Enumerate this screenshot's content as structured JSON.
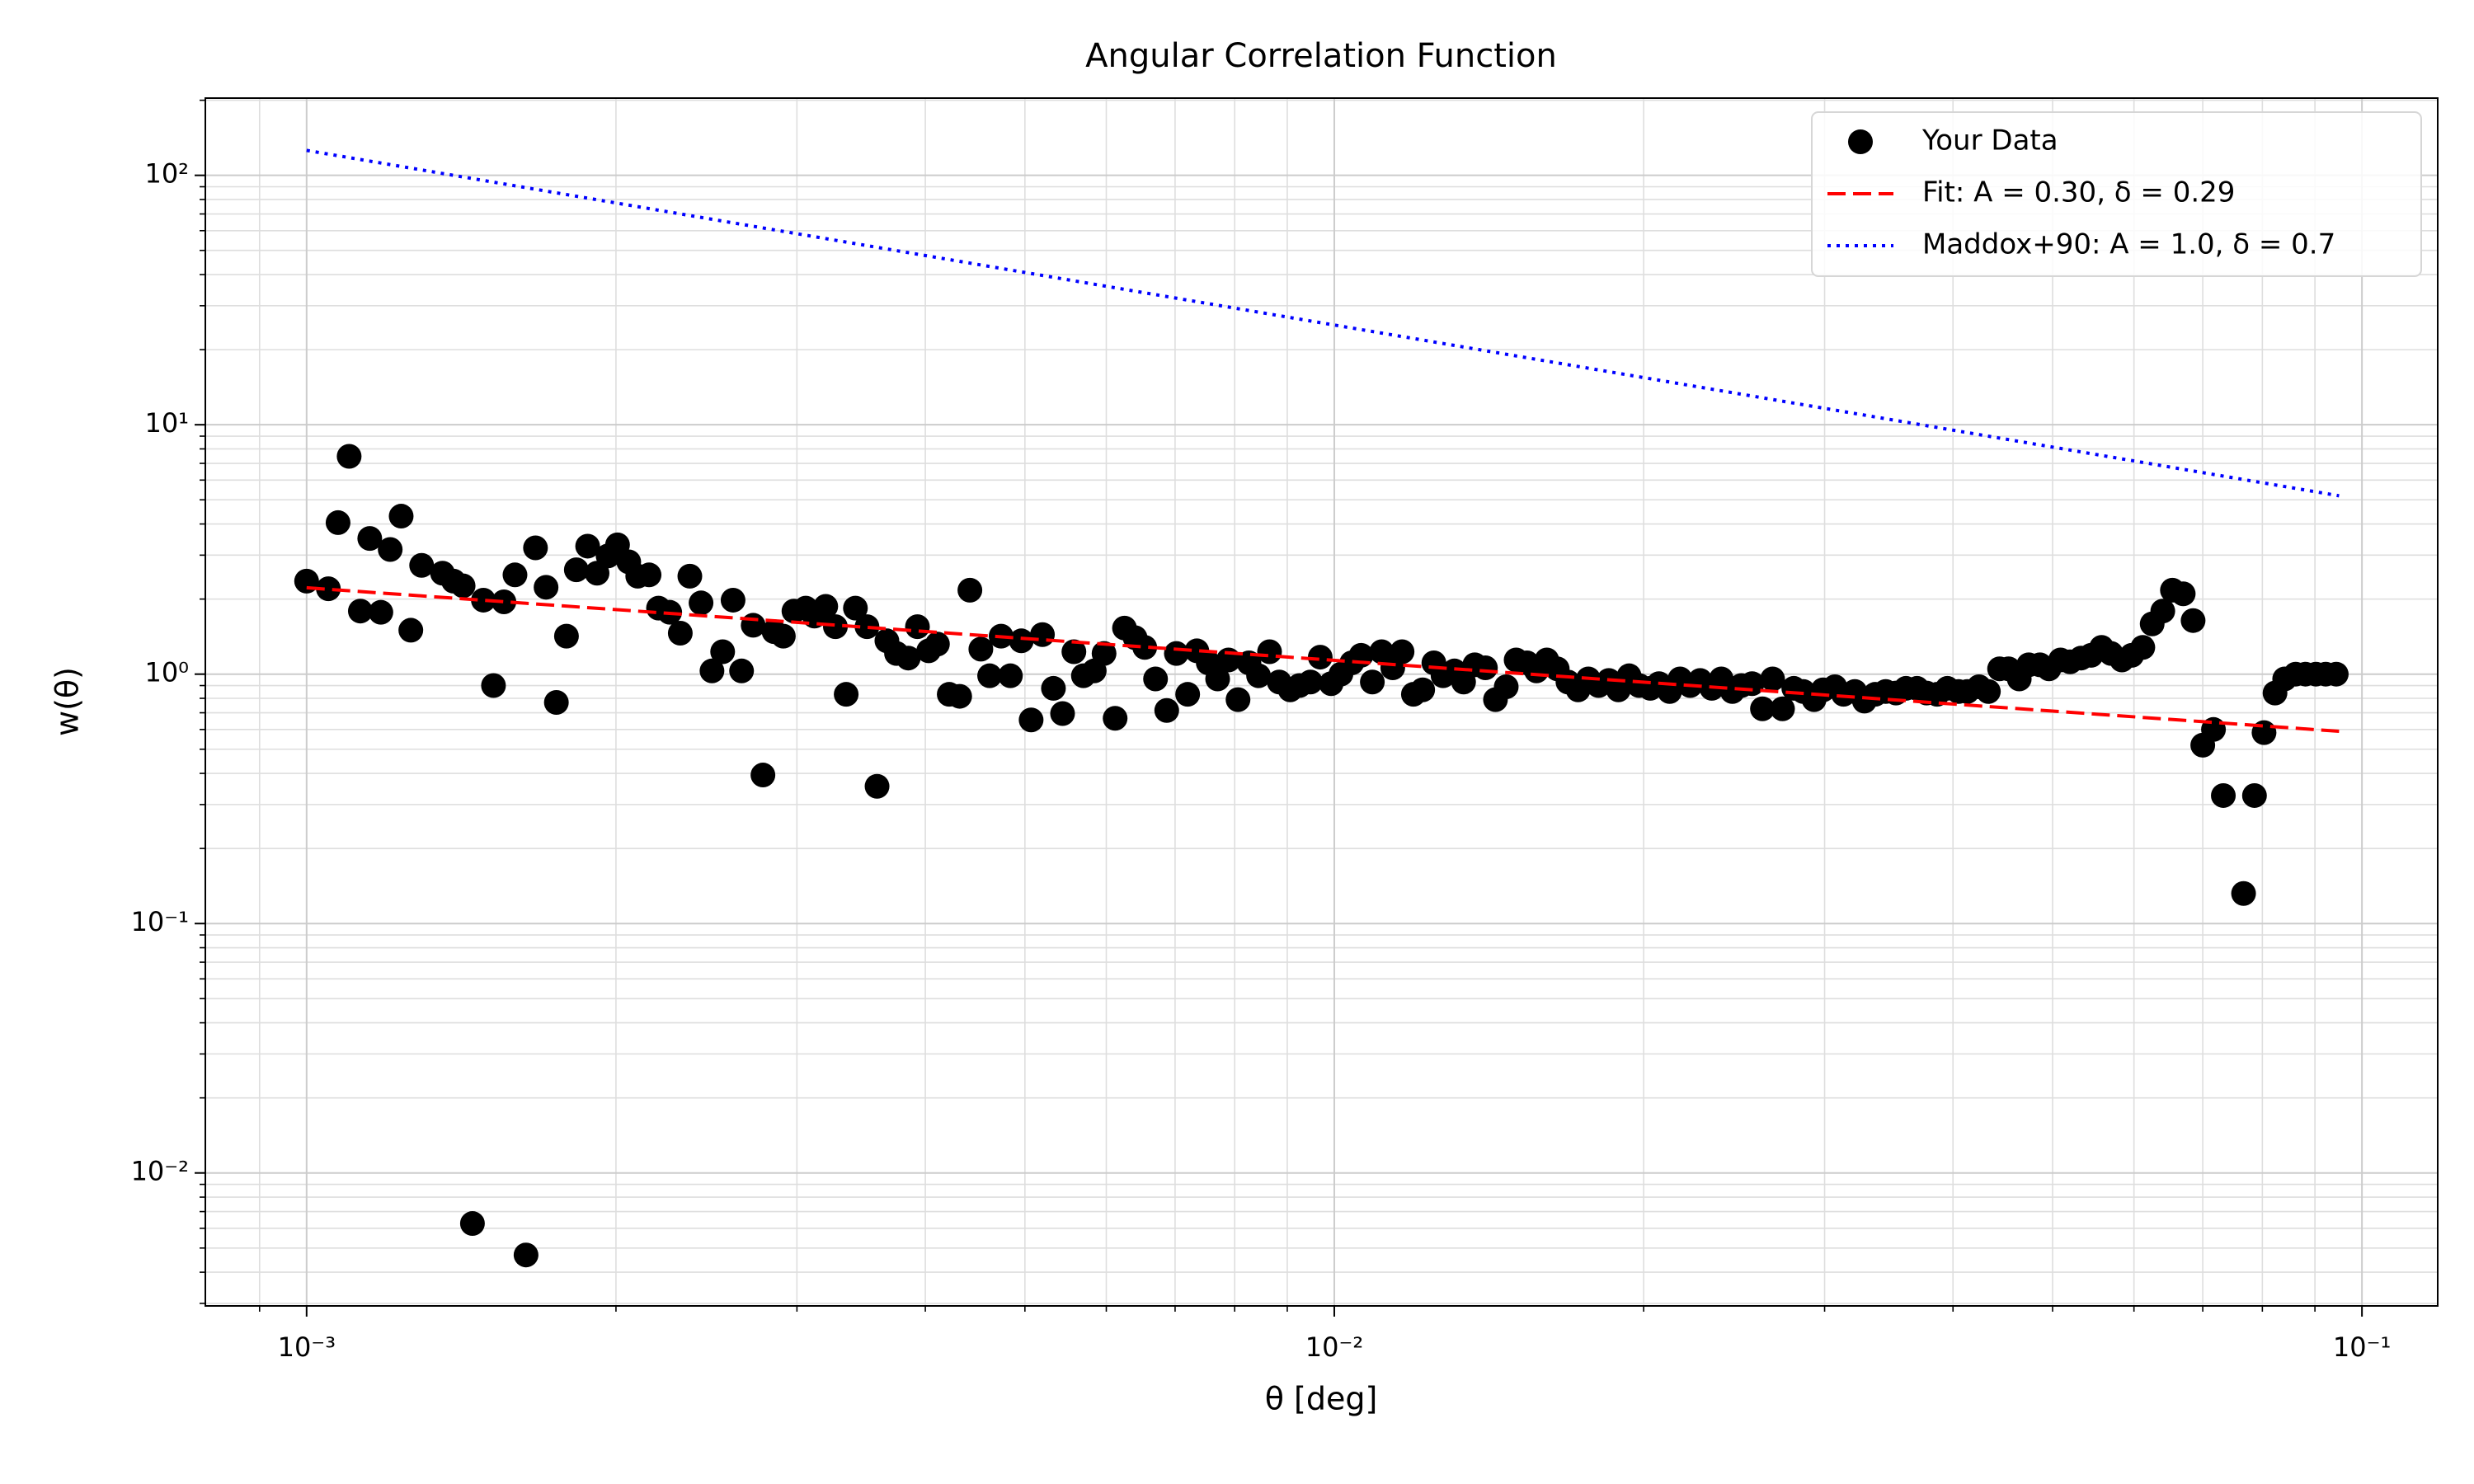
{
  "chart_data": {
    "type": "scatter",
    "title": "Angular Correlation Function",
    "x_label": "θ [deg]",
    "y_label": "w(θ)",
    "xscale": "log",
    "yscale": "log",
    "grid": true,
    "minor_grid": true,
    "legend": "upper right",
    "xlim": [
      0.000797,
      0.1185
    ],
    "ylim": [
      0.00293,
      204
    ],
    "xticks": [
      {
        "value": 0.001,
        "label": "10⁻³"
      },
      {
        "value": 0.01,
        "label": "10⁻²"
      },
      {
        "value": 0.1,
        "label": "10⁻¹"
      }
    ],
    "yticks": [
      {
        "value": 0.01,
        "label": "10⁻²"
      },
      {
        "value": 0.1,
        "label": "10⁻¹"
      },
      {
        "value": 1,
        "label": "10⁰"
      },
      {
        "value": 10,
        "label": "10¹"
      },
      {
        "value": 100,
        "label": "10²"
      }
    ],
    "xminorticks": [
      0.0009,
      0.002,
      0.003,
      0.004,
      0.005,
      0.006,
      0.007,
      0.008,
      0.009,
      0.02,
      0.03,
      0.04,
      0.05,
      0.06,
      0.07,
      0.08,
      0.09
    ],
    "yminorticks": [
      0.003,
      0.004,
      0.005,
      0.006,
      0.007,
      0.008,
      0.009,
      0.02,
      0.03,
      0.04,
      0.05,
      0.06,
      0.07,
      0.08,
      0.09,
      0.2,
      0.3,
      0.4,
      0.5,
      0.6,
      0.7,
      0.8,
      0.9,
      2,
      3,
      4,
      5,
      6,
      7,
      8,
      9,
      20,
      30,
      40,
      50,
      60,
      70,
      80,
      90,
      200
    ],
    "series": [
      {
        "name": "Your Data",
        "type": "scatter",
        "color": "#000000",
        "x": [
          0.001,
          0.00105,
          0.001073,
          0.0011,
          0.001128,
          0.001152,
          0.001181,
          0.001206,
          0.001236,
          0.001263,
          0.001294,
          0.001356,
          0.00139,
          0.00142,
          0.00145,
          0.001486,
          0.00152,
          0.001556,
          0.001595,
          0.001635,
          0.00167,
          0.00171,
          0.00175,
          0.00179,
          0.00183,
          0.001877,
          0.001917,
          0.001965,
          0.002007,
          0.002058,
          0.0021,
          0.002154,
          0.0022,
          0.002256,
          0.00231,
          0.00236,
          0.00242,
          0.00248,
          0.00254,
          0.0026,
          0.00265,
          0.00272,
          0.00278,
          0.00285,
          0.00291,
          0.00298,
          0.00306,
          0.00312,
          0.0032,
          0.00327,
          0.00335,
          0.00342,
          0.00351,
          0.00359,
          0.00367,
          0.00375,
          0.00385,
          0.00393,
          0.00403,
          0.00411,
          0.00422,
          0.00432,
          0.00442,
          0.00453,
          0.00462,
          0.00474,
          0.00484,
          0.00496,
          0.00507,
          0.0052,
          0.00533,
          0.00544,
          0.00558,
          0.0057,
          0.00584,
          0.00597,
          0.00612,
          0.00625,
          0.0064,
          0.00654,
          0.0067,
          0.00687,
          0.00702,
          0.0072,
          0.00735,
          0.00754,
          0.0077,
          0.00789,
          0.00806,
          0.00826,
          0.00844,
          0.00865,
          0.00884,
          0.00906,
          0.00925,
          0.00948,
          0.00969,
          0.00993,
          0.01015,
          0.0104,
          0.01062,
          0.01089,
          0.01112,
          0.0114,
          0.01164,
          0.01194,
          0.01219,
          0.0125,
          0.01276,
          0.01309,
          0.01336,
          0.0137,
          0.01403,
          0.01435,
          0.0147,
          0.01503,
          0.0154,
          0.01573,
          0.0161,
          0.01648,
          0.01688,
          0.01727,
          0.01767,
          0.01808,
          0.0185,
          0.0189,
          0.01936,
          0.0198,
          0.0203,
          0.0207,
          0.0212,
          0.0217,
          0.0222,
          0.0227,
          0.0233,
          0.0238,
          0.0244,
          0.0249,
          0.0255,
          0.0261,
          0.0267,
          0.0273,
          0.028,
          0.0286,
          0.0293,
          0.0299,
          0.0307,
          0.0313,
          0.0321,
          0.0328,
          0.0336,
          0.0344,
          0.0352,
          0.036,
          0.0369,
          0.0377,
          0.0386,
          0.0395,
          0.0405,
          0.0413,
          0.0424,
          0.0433,
          0.0444,
          0.0453,
          0.0464,
          0.0474,
          0.0486,
          0.0496,
          0.0509,
          0.052,
          0.0533,
          0.0545,
          0.0558,
          0.057,
          0.0584,
          0.0597,
          0.0612,
          0.0625,
          0.064,
          0.0654,
          0.067,
          0.0685,
          0.07,
          0.0717,
          0.0733,
          0.0767,
          0.0786,
          0.0803,
          0.0823,
          0.0841,
          0.0862,
          0.0881,
          0.0902,
          0.0922,
          0.0944
        ],
        "values": [
          2.36,
          2.2,
          4.05,
          7.47,
          1.79,
          3.5,
          1.77,
          3.16,
          4.3,
          1.5,
          2.73,
          2.54,
          2.36,
          2.26,
          0.00627,
          1.98,
          0.9,
          1.95,
          2.5,
          0.00469,
          3.21,
          2.23,
          0.77,
          1.42,
          2.62,
          3.26,
          2.54,
          2.98,
          3.3,
          2.82,
          2.47,
          2.5,
          1.84,
          1.77,
          1.46,
          2.47,
          1.93,
          1.03,
          1.23,
          1.98,
          1.03,
          1.57,
          0.394,
          1.48,
          1.42,
          1.79,
          1.84,
          1.71,
          1.87,
          1.55,
          0.83,
          1.84,
          1.55,
          0.355,
          1.36,
          1.21,
          1.16,
          1.55,
          1.24,
          1.32,
          0.83,
          0.815,
          2.17,
          1.26,
          0.985,
          1.42,
          0.985,
          1.36,
          0.655,
          1.44,
          0.877,
          0.695,
          1.23,
          0.985,
          1.03,
          1.21,
          0.665,
          1.53,
          1.4,
          1.28,
          0.957,
          0.715,
          1.21,
          0.83,
          1.24,
          1.11,
          0.957,
          1.14,
          0.79,
          1.11,
          0.985,
          1.23,
          0.93,
          0.865,
          0.9,
          0.93,
          1.17,
          0.916,
          1.0,
          1.11,
          1.19,
          0.93,
          1.23,
          1.06,
          1.23,
          0.83,
          0.865,
          1.11,
          0.985,
          1.03,
          0.93,
          1.09,
          1.06,
          0.79,
          0.89,
          1.14,
          1.11,
          1.03,
          1.14,
          1.05,
          0.93,
          0.865,
          0.957,
          0.9,
          0.943,
          0.865,
          0.985,
          0.9,
          0.877,
          0.916,
          0.852,
          0.957,
          0.9,
          0.943,
          0.877,
          0.957,
          0.852,
          0.9,
          0.916,
          0.726,
          0.957,
          0.726,
          0.877,
          0.852,
          0.79,
          0.865,
          0.89,
          0.83,
          0.852,
          0.78,
          0.83,
          0.852,
          0.84,
          0.877,
          0.877,
          0.84,
          0.83,
          0.877,
          0.852,
          0.852,
          0.89,
          0.852,
          1.05,
          1.05,
          0.957,
          1.09,
          1.09,
          1.05,
          1.14,
          1.12,
          1.16,
          1.19,
          1.28,
          1.21,
          1.14,
          1.19,
          1.28,
          1.59,
          1.79,
          2.17,
          2.1,
          1.64,
          0.519,
          0.6,
          0.326,
          0.132,
          0.326,
          0.583,
          0.84,
          0.957,
          1.0,
          1.0,
          1.0,
          1.0,
          1.0
        ]
      },
      {
        "name": "Fit: A = 0.30, δ = 0.29",
        "type": "line",
        "style": "dashed",
        "color": "#ff0000",
        "x": [
          0.001,
          0.095
        ],
        "values": [
          2.22,
          0.59
        ]
      },
      {
        "name": "Maddox+90: A = 1.0, δ = 0.7",
        "type": "line",
        "style": "dotted",
        "color": "#0000ff",
        "x": [
          0.001,
          0.095
        ],
        "values": [
          125.9,
          5.19
        ]
      }
    ]
  }
}
